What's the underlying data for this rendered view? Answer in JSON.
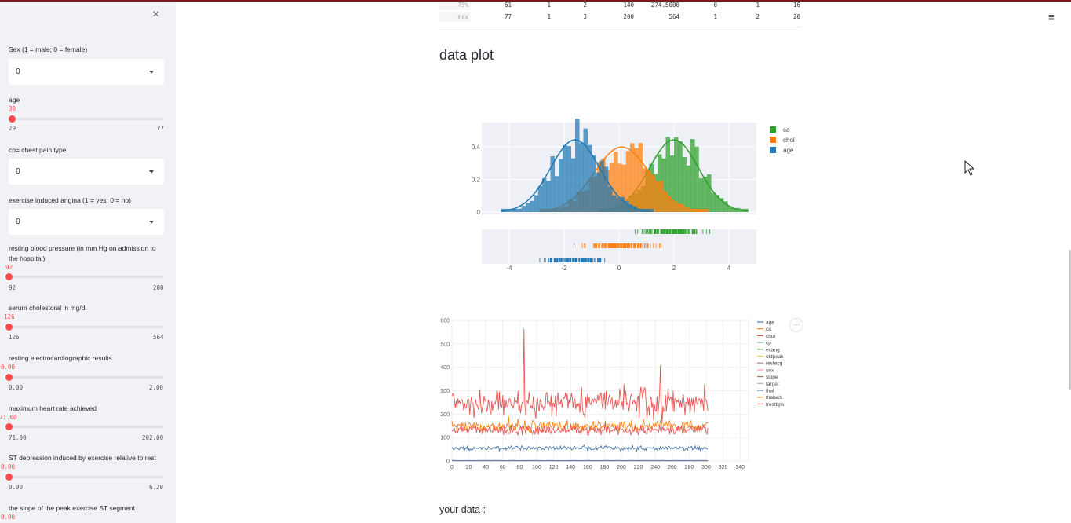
{
  "sidebar": {
    "close_icon": "×",
    "controls": [
      {
        "kind": "select",
        "label": "Sex (1 = male; 0 = female)",
        "value": "0"
      },
      {
        "kind": "slider",
        "label": "age",
        "value": "30",
        "min": "29",
        "max": "77",
        "frac": 0.02
      },
      {
        "kind": "select",
        "label": "cp= chest pain type",
        "value": "0"
      },
      {
        "kind": "select",
        "label": "exercise induced angina (1 = yes; 0 = no)",
        "value": "0"
      },
      {
        "kind": "slider",
        "label": "resting blood pressure (in mm Hg on admission to the hospital)",
        "value": "92",
        "min": "92",
        "max": "200",
        "frac": 0
      },
      {
        "kind": "slider",
        "label": "serum cholestoral in mg/dl",
        "value": "126",
        "min": "126",
        "max": "564",
        "frac": 0
      },
      {
        "kind": "slider",
        "label": "resting electrocardiographic results",
        "value": "0.00",
        "min": "0.00",
        "max": "2.00",
        "frac": 0
      },
      {
        "kind": "slider",
        "label": "maximum heart rate achieved",
        "value": "71.00",
        "min": "71.00",
        "max": "202.00",
        "frac": 0
      },
      {
        "kind": "slider",
        "label": "ST depression induced by exercise relative to rest",
        "value": "0.00",
        "min": "0.00",
        "max": "6.20",
        "frac": 0
      },
      {
        "kind": "slider",
        "label": "the slope of the peak exercise ST segment",
        "value": "0.00"
      }
    ]
  },
  "describe_table": {
    "rows": [
      {
        "index": "75%",
        "cells": [
          "61",
          "1",
          "2",
          "140",
          "274.5000",
          "0",
          "1",
          "16"
        ]
      },
      {
        "index": "max",
        "cells": [
          "77",
          "1",
          "3",
          "200",
          "564",
          "1",
          "2",
          "20"
        ]
      }
    ]
  },
  "headings": {
    "data_plot": "data plot",
    "your_data": "your data :"
  },
  "icons": {
    "hamburger": "≡",
    "more": "⋯"
  },
  "colors": {
    "accent": "#ff4b4b",
    "sidebar_bg": "#f0f2f6",
    "ca": "#2ca02c",
    "chol": "#ff7f0e",
    "age": "#1f77b4"
  },
  "chart_data": [
    {
      "type": "distplot",
      "legend": [
        "ca",
        "chol",
        "age"
      ],
      "legend_placement": "top-right",
      "series": [
        {
          "name": "ca",
          "color": "#2ca02c",
          "mean": 2.0,
          "sd": 0.9
        },
        {
          "name": "chol",
          "color": "#ff7f0e",
          "mean": 0.1,
          "sd": 1.0
        },
        {
          "name": "age",
          "color": "#1f77b4",
          "mean": -1.6,
          "sd": 0.9
        }
      ],
      "x_ticks": [
        -4,
        -2,
        0,
        2,
        4
      ],
      "y_ticks": [
        0,
        0.2,
        0.4
      ],
      "xlim": [
        -5,
        5
      ],
      "ylim": [
        0,
        0.55
      ],
      "grid": true
    },
    {
      "type": "line",
      "legend": [
        "age",
        "ca",
        "chol",
        "cp",
        "exang",
        "oldpeak",
        "restecg",
        "sex",
        "slope",
        "target",
        "thal",
        "thalach",
        "trestbps"
      ],
      "legend_placement": "right",
      "x_ticks": [
        0,
        20,
        40,
        60,
        80,
        100,
        120,
        140,
        160,
        180,
        200,
        220,
        240,
        260,
        280,
        300,
        320,
        340
      ],
      "y_ticks": [
        0,
        100,
        200,
        300,
        400,
        500,
        600
      ],
      "xlim": [
        0,
        350
      ],
      "ylim": [
        0,
        600
      ],
      "series": [
        {
          "name": "age",
          "color": "#4c78a8",
          "mean": 54,
          "amp": 9
        },
        {
          "name": "ca",
          "color": "#f58518",
          "mean": 0.7,
          "amp": 1
        },
        {
          "name": "chol",
          "color": "#e45756",
          "mean": 246,
          "amp": 51
        },
        {
          "name": "cp",
          "color": "#72b7b2",
          "mean": 1,
          "amp": 1
        },
        {
          "name": "exang",
          "color": "#54a24b",
          "mean": 0.3,
          "amp": 0.5
        },
        {
          "name": "oldpeak",
          "color": "#eeca3b",
          "mean": 1,
          "amp": 1
        },
        {
          "name": "restecg",
          "color": "#b279a2",
          "mean": 0.5,
          "amp": 0.5
        },
        {
          "name": "sex",
          "color": "#ff9da6",
          "mean": 0.7,
          "amp": 0.5
        },
        {
          "name": "slope",
          "color": "#9d755d",
          "mean": 1.4,
          "amp": 0.6
        },
        {
          "name": "target",
          "color": "#bab0ac",
          "mean": 0.5,
          "amp": 0.5
        },
        {
          "name": "thal",
          "color": "#4c78a8",
          "mean": 2.3,
          "amp": 0.6
        },
        {
          "name": "thalach",
          "color": "#f58518",
          "mean": 150,
          "amp": 23
        },
        {
          "name": "trestbps",
          "color": "#e45756",
          "mean": 132,
          "amp": 18
        }
      ]
    }
  ]
}
